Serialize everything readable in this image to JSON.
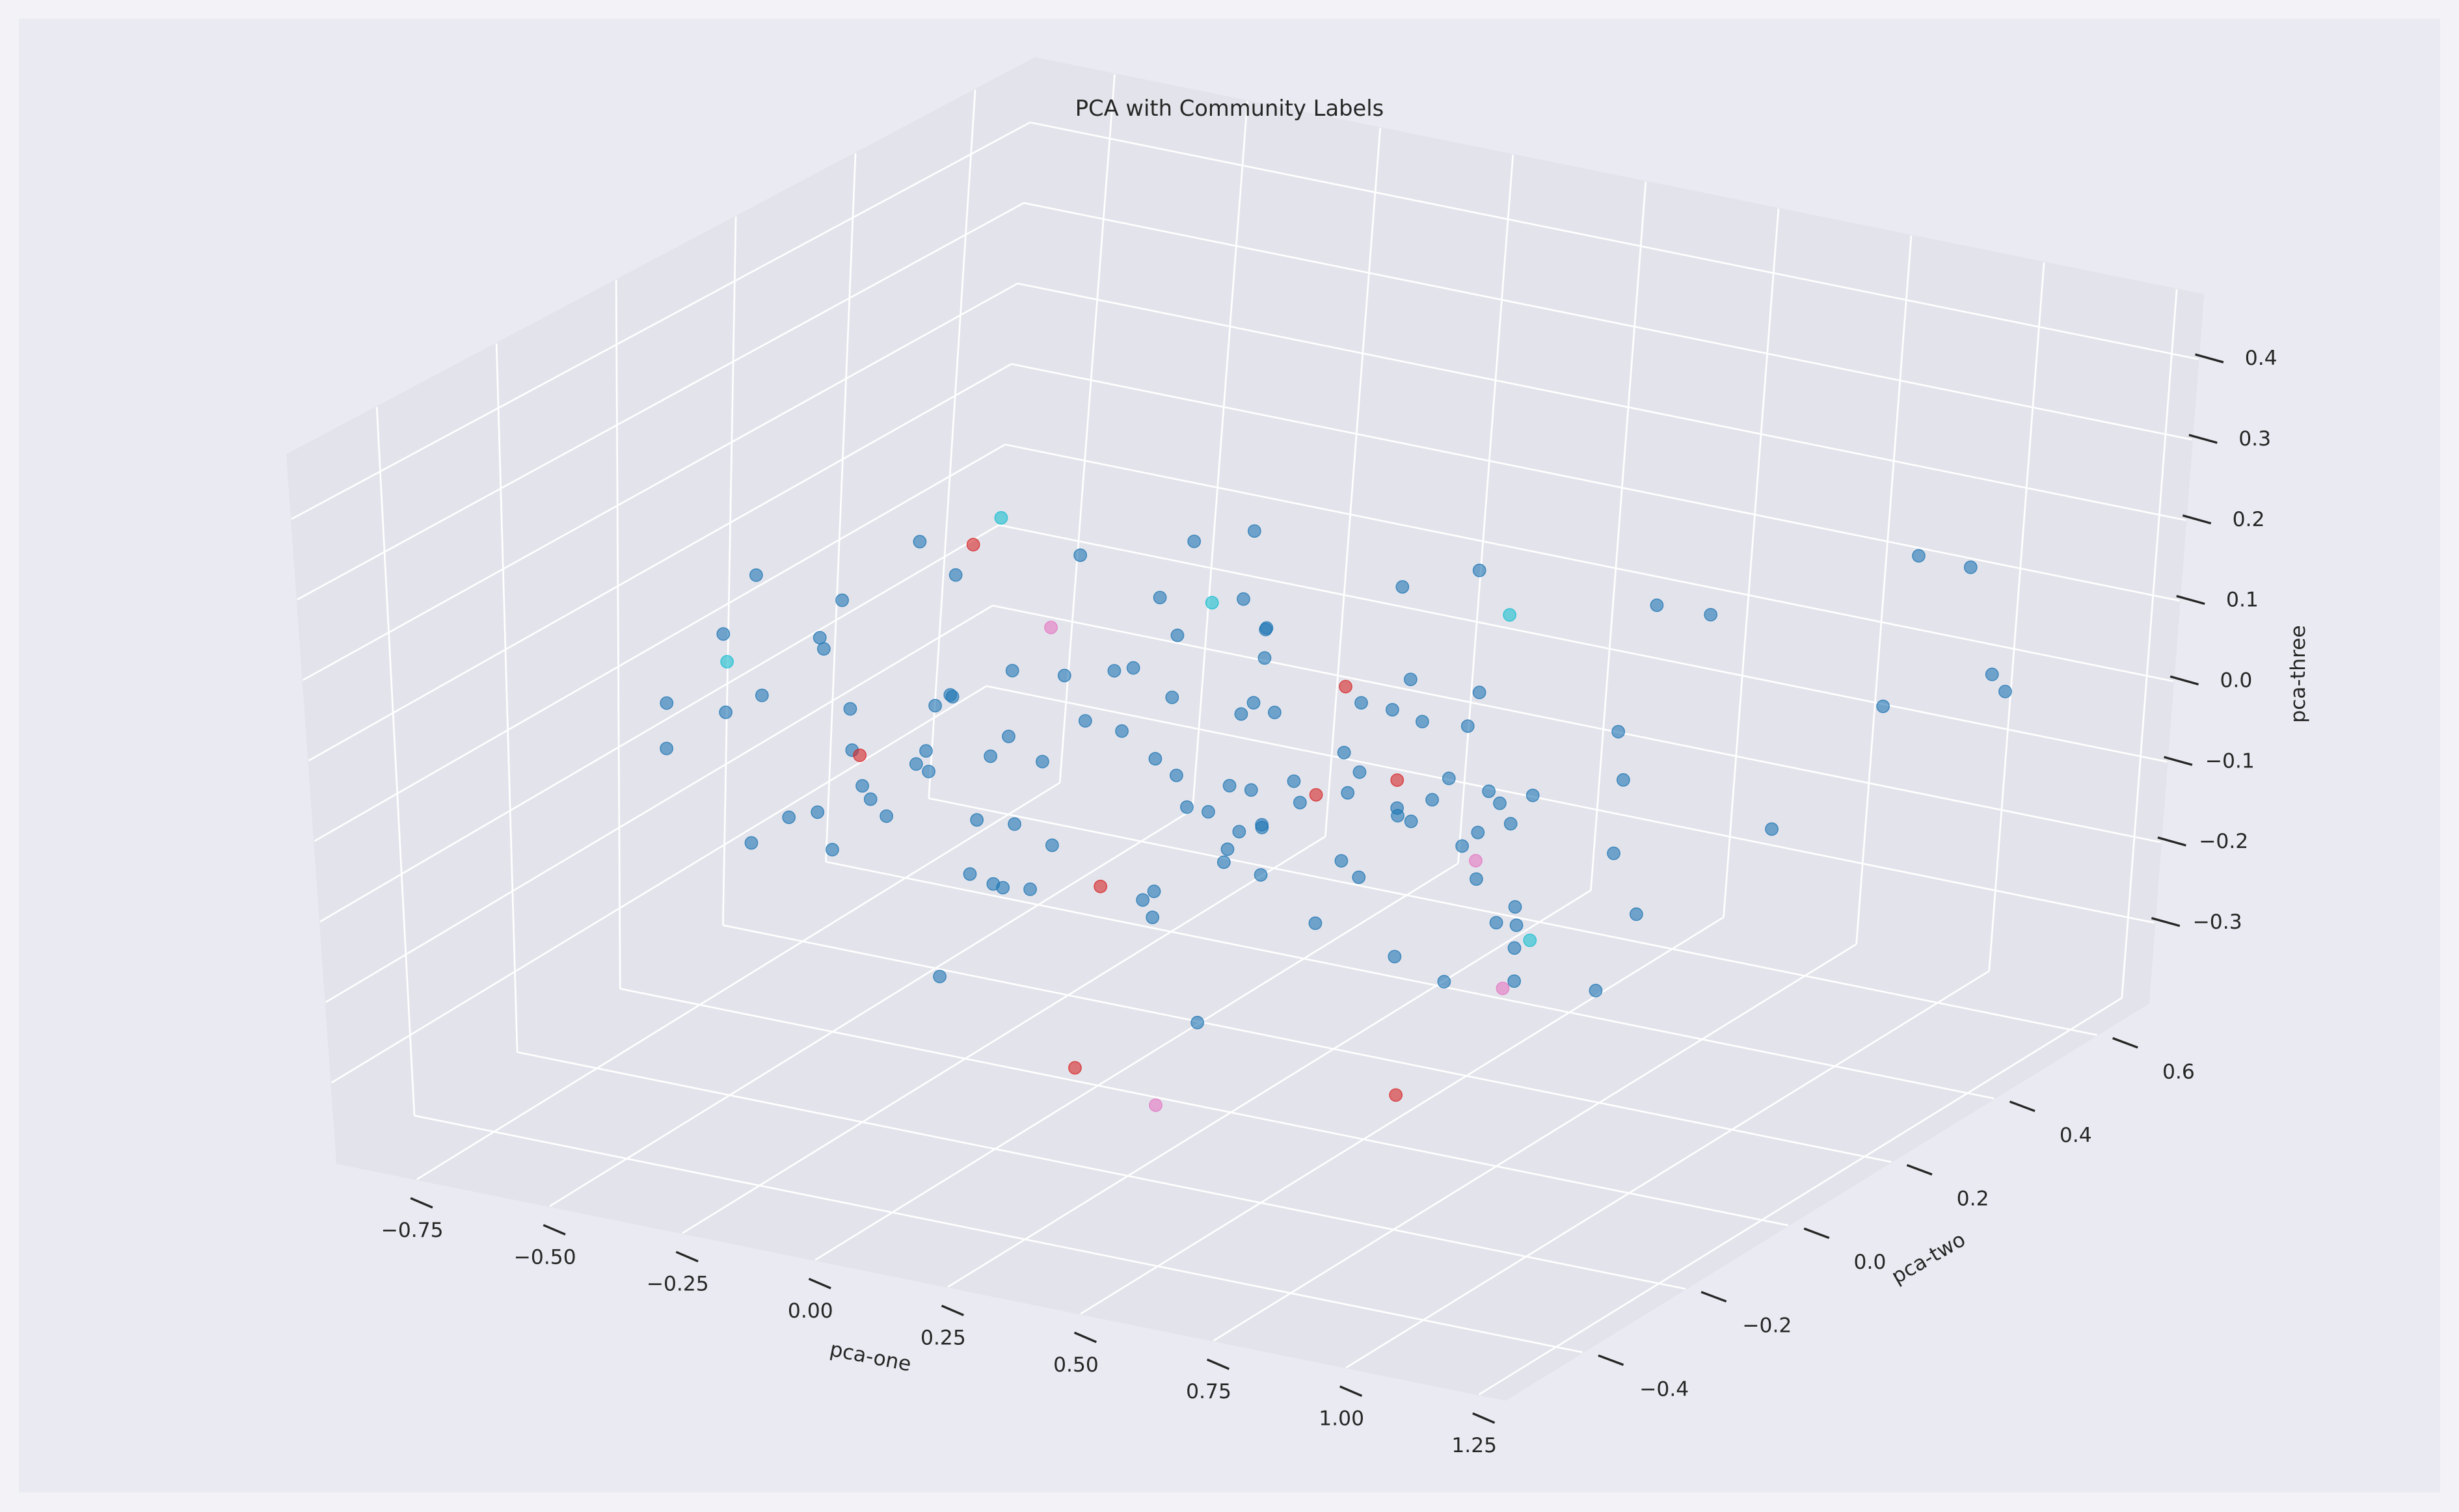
{
  "chart_data": {
    "type": "scatter3d",
    "title": "PCA with Community Labels",
    "xlabel": "pca-one",
    "ylabel": "pca-two",
    "zlabel": "pca-three",
    "xlim": [
      -0.9,
      1.3
    ],
    "ylim": [
      -0.55,
      0.7
    ],
    "zlim": [
      -0.4,
      0.48
    ],
    "xticks": [
      {
        "value": -0.75,
        "label": "−0.75"
      },
      {
        "value": -0.5,
        "label": "−0.50"
      },
      {
        "value": -0.25,
        "label": "−0.25"
      },
      {
        "value": 0,
        "label": "0.00"
      },
      0.25,
      {
        "value": 0.5,
        "label": "0.50"
      },
      0.75,
      {
        "value": 1,
        "label": "1.00"
      },
      1.25
    ],
    "yticks": [
      {
        "value": -0.4,
        "label": "−0.4"
      },
      {
        "value": -0.2,
        "label": "−0.2"
      },
      {
        "value": 0,
        "label": "0.0"
      },
      0.2,
      0.4,
      0.6
    ],
    "zticks": [
      {
        "value": -0.3,
        "label": "−0.3"
      },
      {
        "value": -0.2,
        "label": "−0.2"
      },
      {
        "value": -0.1,
        "label": "−0.1"
      },
      {
        "value": 0,
        "label": "0.0"
      },
      0.1,
      0.2,
      0.3,
      0.4
    ],
    "grid": true,
    "series": [
      {
        "color": "#1f77b4",
        "x": [
          -0.62,
          -0.45,
          -0.3,
          -0.15,
          0.0,
          0.12,
          0.25,
          0.38,
          0.52,
          0.7,
          -0.55,
          -0.38,
          -0.22,
          -0.08,
          0.05,
          0.18,
          0.3,
          0.44,
          0.6,
          0.82,
          -0.48,
          -0.32,
          -0.18,
          -0.02,
          0.1,
          0.22,
          0.35,
          0.48,
          0.66,
          0.9,
          -0.4,
          -0.26,
          -0.12,
          0.02,
          0.15,
          0.28,
          0.4,
          0.55,
          0.72,
          0.95,
          -0.35,
          -0.2,
          -0.05,
          0.08,
          0.2,
          0.32,
          0.45,
          0.58,
          0.76,
          1.05,
          -0.28,
          -0.14,
          0.0,
          0.14,
          0.26,
          0.38,
          0.5,
          0.64,
          0.8,
          1.1,
          -0.7,
          -0.52,
          -0.36,
          -0.1,
          0.06,
          0.24,
          0.42,
          0.62,
          0.85,
          1.2,
          -0.58,
          -0.42,
          -0.24,
          -0.06,
          0.12,
          0.3,
          0.46,
          0.68,
          0.88,
          1.15,
          -0.65,
          -0.34,
          -0.16,
          0.04,
          0.2,
          0.36,
          0.52,
          0.7,
          0.92,
          1.25,
          -0.5,
          -0.28,
          -0.1,
          0.1,
          0.28,
          0.44,
          0.6,
          0.78,
          1.0,
          0.16,
          -0.44,
          -0.2,
          0.0,
          0.18,
          0.34,
          0.5,
          0.66,
          0.84,
          0.3,
          0.08,
          -0.75,
          -0.6,
          -0.04,
          0.22,
          0.4,
          0.56,
          0.74,
          0.96,
          1.18,
          0.26
        ],
        "y": [
          0.1,
          -0.2,
          0.25,
          -0.05,
          0.3,
          -0.3,
          0.05,
          0.2,
          -0.15,
          0.0,
          -0.25,
          0.15,
          -0.1,
          0.35,
          -0.35,
          0.1,
          -0.2,
          0.25,
          -0.05,
          0.15,
          0.2,
          -0.3,
          0.05,
          -0.15,
          0.22,
          -0.08,
          0.3,
          -0.25,
          0.12,
          -0.1,
          -0.12,
          0.28,
          -0.22,
          0.08,
          -0.02,
          0.18,
          -0.32,
          0.02,
          0.24,
          0.05,
          0.32,
          -0.08,
          0.15,
          -0.28,
          0.36,
          -0.12,
          0.1,
          -0.18,
          -0.02,
          0.2,
          -0.18,
          0.05,
          -0.3,
          0.22,
          -0.1,
          0.3,
          -0.05,
          0.14,
          -0.25,
          0.35,
          0.0,
          0.24,
          -0.14,
          0.4,
          -0.22,
          0.06,
          0.26,
          -0.36,
          0.08,
          0.3,
          -0.06,
          -0.16,
          0.34,
          -0.26,
          0.16,
          -0.04,
          -0.28,
          0.28,
          -0.12,
          0.45,
          0.18,
          0.0,
          -0.36,
          0.2,
          -0.16,
          0.12,
          -0.22,
          0.04,
          0.1,
          0.4,
          -0.3,
          0.12,
          0.26,
          -0.34,
          0.02,
          -0.2,
          0.18,
          -0.08,
          -0.3,
          0.44,
          0.04,
          -0.24,
          0.14,
          -0.12,
          0.28,
          -0.02,
          0.06,
          -0.2,
          -0.4,
          0.38,
          0.26,
          -0.1,
          -0.38,
          0.32,
          -0.14,
          0.22,
          -0.26,
          0.16,
          0.5,
          -0.32
        ],
        "z": [
          0.02,
          -0.08,
          0.12,
          -0.15,
          0.05,
          -0.02,
          0.18,
          -0.1,
          0.08,
          -0.05,
          0.1,
          -0.18,
          0.0,
          0.14,
          -0.12,
          0.06,
          -0.04,
          0.2,
          -0.14,
          0.03,
          -0.06,
          0.16,
          -0.2,
          0.09,
          -0.01,
          0.22,
          -0.09,
          0.04,
          -0.16,
          0.12,
          0.15,
          -0.03,
          0.07,
          -0.22,
          0.11,
          -0.07,
          0.01,
          0.17,
          -0.11,
          -0.08,
          -0.12,
          0.09,
          -0.06,
          0.13,
          -0.18,
          0.03,
          0.24,
          -0.05,
          0.06,
          -0.02,
          0.05,
          -0.14,
          0.19,
          -0.09,
          0.02,
          -0.17,
          0.1,
          -0.24,
          0.15,
          0.08,
          -0.03,
          0.07,
          -0.1,
          -0.04,
          0.21,
          -0.13,
          0.0,
          0.14,
          -0.2,
          0.3,
          0.18,
          -0.06,
          0.04,
          0.11,
          -0.08,
          0.26,
          -0.15,
          0.02,
          0.09,
          0.22,
          -0.09,
          0.23,
          0.06,
          -0.18,
          0.13,
          -0.01,
          0.08,
          -0.12,
          0.28,
          0.12,
          0.07,
          -0.16,
          0.16,
          0.01,
          -0.05,
          0.11,
          -0.22,
          0.05,
          0.34,
          -0.1,
          -0.14,
          0.04,
          -0.07,
          0.19,
          -0.11,
          0.15,
          0.03,
          -0.08,
          0.2,
          -0.26,
          0.0,
          0.12,
          0.1,
          -0.03,
          0.17,
          -0.19,
          0.06,
          0.25,
          0.05,
          0.27
        ]
      },
      {
        "color": "#d62728",
        "x": [
          -0.55,
          0.1,
          0.25,
          0.6,
          -0.45,
          0.85,
          0.3,
          0.45
        ],
        "y": [
          0.3,
          -0.1,
          0.2,
          -0.2,
          0.0,
          -0.3,
          -0.35,
          0.1
        ],
        "z": [
          0.08,
          -0.1,
          0.05,
          0.12,
          -0.05,
          -0.18,
          -0.2,
          0.0
        ]
      },
      {
        "color": "#17becf",
        "x": [
          -0.8,
          -0.5,
          0.4,
          0.9,
          0.15
        ],
        "y": [
          0.1,
          0.3,
          0.35,
          -0.1,
          0.05
        ],
        "z": [
          -0.02,
          0.12,
          0.1,
          -0.06,
          0.2
        ]
      },
      {
        "color": "#e377c2",
        "x": [
          -0.3,
          0.6,
          0.9,
          0.5
        ],
        "y": [
          0.2,
          0.1,
          -0.15,
          -0.4
        ],
        "z": [
          0.05,
          -0.08,
          -0.1,
          -0.2
        ]
      }
    ]
  }
}
